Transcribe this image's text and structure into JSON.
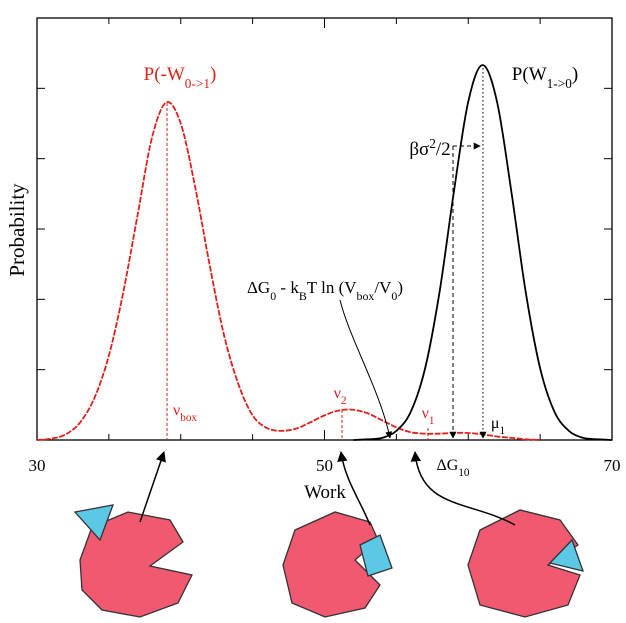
{
  "chart_data": {
    "type": "line",
    "x_label": "Work",
    "y_label": "Probability",
    "xlim": [
      30,
      70
    ],
    "ylim": [
      0,
      6
    ],
    "xticks": [
      30,
      50,
      70
    ],
    "minor_xticks": [
      35,
      40,
      45,
      55,
      60,
      65
    ],
    "yticks": [
      1,
      2,
      3,
      4,
      5
    ],
    "series": [
      {
        "color": "#e0201b",
        "style": "dashed",
        "x": [
          30,
          31,
          32,
          33,
          34,
          35,
          36,
          37,
          38,
          39,
          40,
          41,
          42,
          43,
          44,
          45,
          46,
          47,
          48,
          49,
          50,
          51,
          52,
          53,
          54,
          55,
          56,
          57,
          58,
          59,
          60,
          61,
          62,
          63,
          64,
          65
        ],
        "values": [
          0,
          0.02,
          0.08,
          0.25,
          0.6,
          1.2,
          2.1,
          3.2,
          4.3,
          4.8,
          4.5,
          3.6,
          2.5,
          1.5,
          0.8,
          0.35,
          0.17,
          0.13,
          0.16,
          0.25,
          0.35,
          0.42,
          0.43,
          0.38,
          0.28,
          0.18,
          0.11,
          0.09,
          0.09,
          0.1,
          0.1,
          0.08,
          0.05,
          0.03,
          0.01,
          0
        ]
      },
      {
        "color": "#000000",
        "style": "solid",
        "x": [
          52,
          53,
          54,
          55,
          56,
          57,
          58,
          59,
          60,
          61,
          62,
          63,
          64,
          65,
          66,
          67,
          68,
          69,
          70
        ],
        "values": [
          0,
          0.01,
          0.03,
          0.13,
          0.4,
          1.02,
          2.1,
          3.53,
          4.81,
          5.33,
          4.81,
          3.53,
          2.1,
          1.02,
          0.4,
          0.13,
          0.03,
          0.01,
          0
        ]
      }
    ],
    "annotations": [
      {
        "color": "#e0201b",
        "segments": [
          {
            "text": "P(-W"
          },
          {
            "text": "0->1",
            "shift": "sub"
          },
          {
            "text": ")"
          }
        ]
      },
      {
        "color": "#000000",
        "segments": [
          {
            "text": "P(W"
          },
          {
            "text": "1->0",
            "shift": "sub"
          },
          {
            "text": ")"
          }
        ]
      },
      {
        "color": "#000000",
        "segments": [
          {
            "text": "βσ"
          },
          {
            "text": "2",
            "shift": "super"
          },
          {
            "text": "/2"
          }
        ]
      },
      {
        "color": "#000000",
        "segments": [
          {
            "text": "ΔG"
          },
          {
            "text": "0",
            "shift": "sub"
          },
          {
            "text": " - k"
          },
          {
            "text": "B",
            "shift": "sub"
          },
          {
            "text": "T ln (V"
          },
          {
            "text": "box",
            "shift": "sub"
          },
          {
            "text": "/V"
          },
          {
            "text": "0",
            "shift": "sub"
          },
          {
            "text": ")"
          }
        ]
      },
      {
        "color": "#e0201b",
        "segments": [
          {
            "text": "ν"
          },
          {
            "text": "box",
            "shift": "sub"
          }
        ]
      },
      {
        "color": "#e0201b",
        "segments": [
          {
            "text": "ν"
          },
          {
            "text": "2",
            "shift": "sub"
          }
        ]
      },
      {
        "color": "#e0201b",
        "segments": [
          {
            "text": "ν"
          },
          {
            "text": "1",
            "shift": "sub"
          }
        ]
      },
      {
        "color": "#000000",
        "segments": [
          {
            "text": "μ"
          },
          {
            "text": "1",
            "shift": "sub"
          }
        ]
      },
      {
        "color": "#000000",
        "segments": [
          {
            "text": "ΔG"
          },
          {
            "text": "10",
            "shift": "sub"
          }
        ]
      }
    ]
  }
}
